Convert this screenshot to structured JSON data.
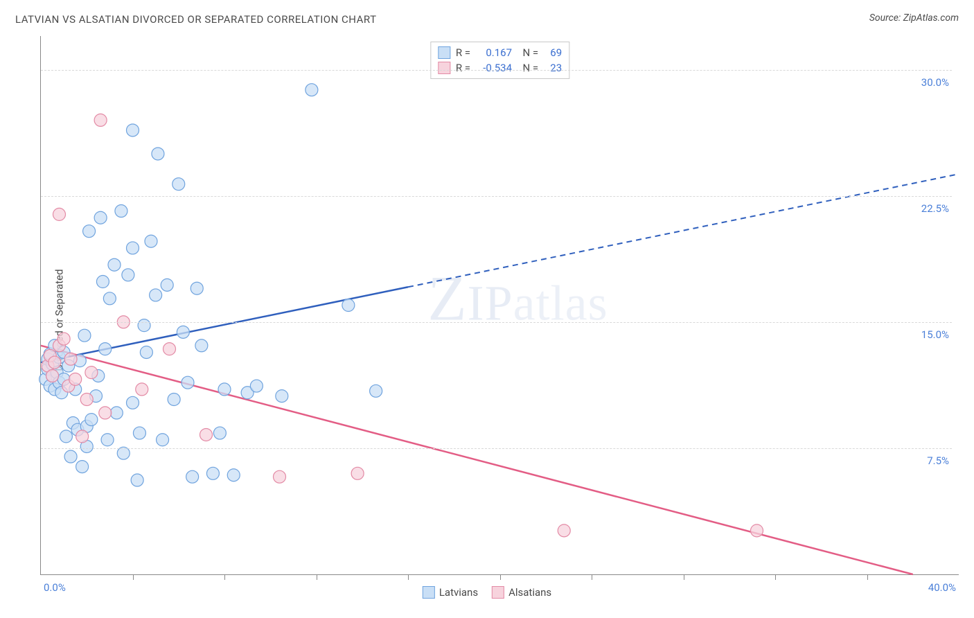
{
  "header": {
    "title": "LATVIAN VS ALSATIAN DIVORCED OR SEPARATED CORRELATION CHART",
    "source": "Source: ZipAtlas.com"
  },
  "watermark": "ZIPatlas",
  "chart": {
    "type": "scatter",
    "ylabel": "Divorced or Separated",
    "background_color": "#ffffff",
    "grid_color": "#d8d8d8",
    "border_color": "#888888",
    "text_color": "#4a4a4a",
    "axis_value_color": "#4a7fd8",
    "xlim": [
      0,
      40
    ],
    "ylim": [
      0,
      32
    ],
    "x_axis_min_label": "0.0%",
    "x_axis_max_label": "40.0%",
    "y_gridlines": [
      {
        "value": 7.5,
        "label": "7.5%"
      },
      {
        "value": 15.0,
        "label": "15.0%"
      },
      {
        "value": 22.5,
        "label": "22.5%"
      },
      {
        "value": 30.0,
        "label": "30.0%"
      }
    ],
    "x_ticks_count": 9,
    "marker_radius": 9,
    "marker_stroke_width": 1.2,
    "series": [
      {
        "name": "Latvians",
        "fill": "#c9dff6",
        "stroke": "#6fa3de",
        "line_color": "#2f5fbd",
        "R": "0.167",
        "N": "69",
        "trend": {
          "x1": 0,
          "y1": 12.6,
          "x2": 40,
          "y2": 23.8,
          "solid_until_x": 16
        },
        "points": [
          [
            0.2,
            11.6
          ],
          [
            0.3,
            12.2
          ],
          [
            0.3,
            12.8
          ],
          [
            0.4,
            11.2
          ],
          [
            0.4,
            13.1
          ],
          [
            0.5,
            11.8
          ],
          [
            0.5,
            12.5
          ],
          [
            0.6,
            11.0
          ],
          [
            0.6,
            13.6
          ],
          [
            0.7,
            12.0
          ],
          [
            0.8,
            11.4
          ],
          [
            0.8,
            12.9
          ],
          [
            0.9,
            10.8
          ],
          [
            1.0,
            13.2
          ],
          [
            1.0,
            11.6
          ],
          [
            1.1,
            8.2
          ],
          [
            1.2,
            12.4
          ],
          [
            1.3,
            7.0
          ],
          [
            1.4,
            9.0
          ],
          [
            1.5,
            11.0
          ],
          [
            1.6,
            8.6
          ],
          [
            1.7,
            12.7
          ],
          [
            1.8,
            6.4
          ],
          [
            1.9,
            14.2
          ],
          [
            2.0,
            7.6
          ],
          [
            2.0,
            8.8
          ],
          [
            2.1,
            20.4
          ],
          [
            2.2,
            9.2
          ],
          [
            2.4,
            10.6
          ],
          [
            2.5,
            11.8
          ],
          [
            2.6,
            21.2
          ],
          [
            2.7,
            17.4
          ],
          [
            2.8,
            13.4
          ],
          [
            2.9,
            8.0
          ],
          [
            3.0,
            16.4
          ],
          [
            3.2,
            18.4
          ],
          [
            3.3,
            9.6
          ],
          [
            3.5,
            21.6
          ],
          [
            3.6,
            7.2
          ],
          [
            3.8,
            17.8
          ],
          [
            4.0,
            19.4
          ],
          [
            4.0,
            26.4
          ],
          [
            4.2,
            5.6
          ],
          [
            4.3,
            8.4
          ],
          [
            4.5,
            14.8
          ],
          [
            4.6,
            13.2
          ],
          [
            4.8,
            19.8
          ],
          [
            5.0,
            16.6
          ],
          [
            5.1,
            25.0
          ],
          [
            5.3,
            8.0
          ],
          [
            5.5,
            17.2
          ],
          [
            5.8,
            10.4
          ],
          [
            6.0,
            23.2
          ],
          [
            6.2,
            14.4
          ],
          [
            6.4,
            11.4
          ],
          [
            6.6,
            5.8
          ],
          [
            6.8,
            17.0
          ],
          [
            7.0,
            13.6
          ],
          [
            7.5,
            6.0
          ],
          [
            8.0,
            11.0
          ],
          [
            8.4,
            5.9
          ],
          [
            9.0,
            10.8
          ],
          [
            9.4,
            11.2
          ],
          [
            10.5,
            10.6
          ],
          [
            11.8,
            28.8
          ],
          [
            13.4,
            16.0
          ],
          [
            14.6,
            10.9
          ],
          [
            7.8,
            8.4
          ],
          [
            4.0,
            10.2
          ]
        ]
      },
      {
        "name": "Alsatians",
        "fill": "#f7d3dd",
        "stroke": "#e38aa5",
        "line_color": "#e35d85",
        "R": "-0.534",
        "N": "23",
        "trend": {
          "x1": 0,
          "y1": 13.6,
          "x2": 38,
          "y2": 0.0,
          "solid_until_x": 38
        },
        "points": [
          [
            0.3,
            12.4
          ],
          [
            0.4,
            13.0
          ],
          [
            0.5,
            11.8
          ],
          [
            0.6,
            12.6
          ],
          [
            0.8,
            21.4
          ],
          [
            0.8,
            13.6
          ],
          [
            1.0,
            14.0
          ],
          [
            1.2,
            11.2
          ],
          [
            1.3,
            12.8
          ],
          [
            1.5,
            11.6
          ],
          [
            1.8,
            8.2
          ],
          [
            2.0,
            10.4
          ],
          [
            2.2,
            12.0
          ],
          [
            2.6,
            27.0
          ],
          [
            2.8,
            9.6
          ],
          [
            3.6,
            15.0
          ],
          [
            4.4,
            11.0
          ],
          [
            5.6,
            13.4
          ],
          [
            7.2,
            8.3
          ],
          [
            10.4,
            5.8
          ],
          [
            13.8,
            6.0
          ],
          [
            22.8,
            2.6
          ],
          [
            31.2,
            2.6
          ]
        ]
      }
    ],
    "legend_bottom": [
      {
        "label": "Latvians",
        "fill": "#c9dff6",
        "stroke": "#6fa3de"
      },
      {
        "label": "Alsatians",
        "fill": "#f7d3dd",
        "stroke": "#e38aa5"
      }
    ]
  }
}
